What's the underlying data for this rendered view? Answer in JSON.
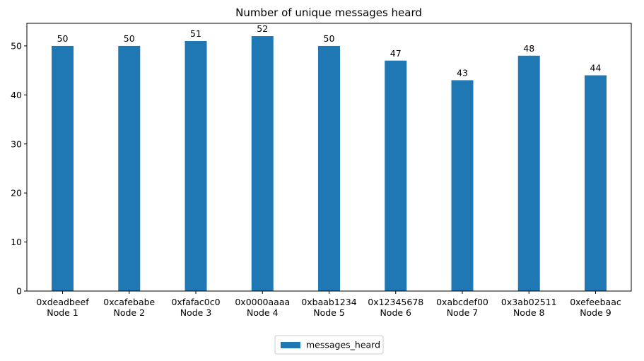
{
  "chart_data": {
    "type": "bar",
    "title": "Number of unique messages heard",
    "categories": [
      [
        "0xdeadbeef",
        "Node 1"
      ],
      [
        "0xcafebabe",
        "Node 2"
      ],
      [
        "0xfafac0c0",
        "Node 3"
      ],
      [
        "0x0000aaaa",
        "Node 4"
      ],
      [
        "0xbaab1234",
        "Node 5"
      ],
      [
        "0x12345678",
        "Node 6"
      ],
      [
        "0xabcdef00",
        "Node 7"
      ],
      [
        "0x3ab02511",
        "Node 8"
      ],
      [
        "0xefeebaac",
        "Node 9"
      ]
    ],
    "series": [
      {
        "name": "messages_heard",
        "color": "#1f77b4",
        "values": [
          50,
          50,
          51,
          52,
          50,
          47,
          43,
          48,
          44
        ]
      }
    ],
    "ylim": [
      0,
      54.6
    ],
    "yticks": [
      0,
      10,
      20,
      30,
      40,
      50
    ],
    "grid": false,
    "legend": "bottom"
  }
}
